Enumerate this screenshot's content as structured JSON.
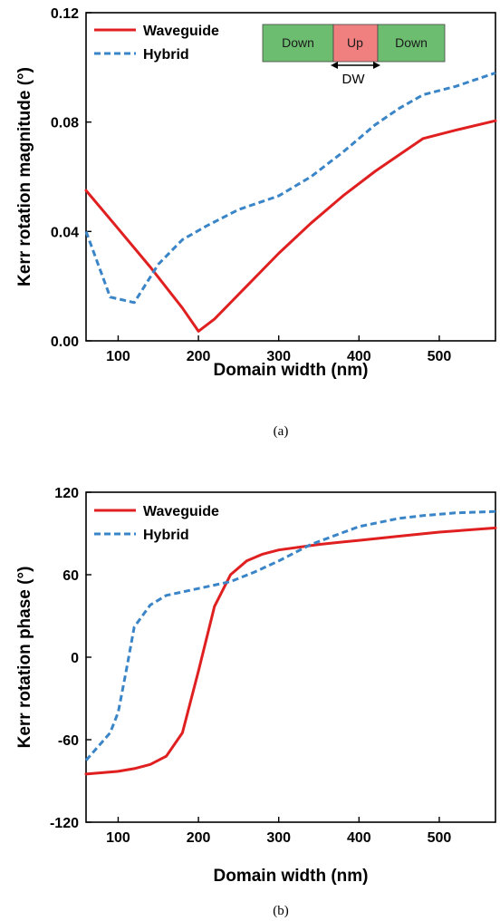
{
  "chart_data": [
    {
      "type": "line",
      "caption": "(a)",
      "xlabel": "Domain width (nm)",
      "ylabel": "Kerr rotation magnitude (°)",
      "xlim": [
        60,
        570
      ],
      "ylim": [
        0,
        0.12
      ],
      "xticks": [
        100,
        200,
        300,
        400,
        500
      ],
      "yticks": [
        0,
        0.04,
        0.08,
        0.12
      ],
      "ytick_labels": [
        "0.00",
        "0.04",
        "0.08",
        "0.12"
      ],
      "grid": false,
      "legend_position": "top-left",
      "series": [
        {
          "name": "Waveguide",
          "color": "#e02020",
          "style": "solid",
          "x": [
            60,
            100,
            140,
            180,
            200,
            220,
            260,
            300,
            340,
            380,
            420,
            450,
            480,
            520,
            570
          ],
          "y": [
            0.055,
            0.041,
            0.027,
            0.012,
            0.0035,
            0.008,
            0.02,
            0.032,
            0.043,
            0.053,
            0.062,
            0.068,
            0.074,
            0.077,
            0.0805
          ]
        },
        {
          "name": "Hybrid",
          "color": "#3a85c8",
          "style": "dashed",
          "x": [
            60,
            90,
            120,
            150,
            180,
            210,
            250,
            300,
            340,
            380,
            420,
            450,
            480,
            520,
            570
          ],
          "y": [
            0.04,
            0.016,
            0.014,
            0.028,
            0.037,
            0.042,
            0.048,
            0.053,
            0.06,
            0.069,
            0.079,
            0.085,
            0.09,
            0.093,
            0.098
          ]
        }
      ],
      "inset": {
        "segments": [
          "Down",
          "Up",
          "Down"
        ],
        "colors": [
          "#6dbd70",
          "#f08080",
          "#6dbd70"
        ],
        "arrow_label": "DW"
      }
    },
    {
      "type": "line",
      "caption": "(b)",
      "xlabel": "Domain width (nm)",
      "ylabel": "Kerr rotation phase (°)",
      "xlim": [
        60,
        570
      ],
      "ylim": [
        -120,
        120
      ],
      "xticks": [
        100,
        200,
        300,
        400,
        500
      ],
      "yticks": [
        -120,
        -60,
        0,
        60,
        120
      ],
      "ytick_labels": [
        "-120",
        "-60",
        "0",
        "60",
        "120"
      ],
      "grid": false,
      "legend_position": "top-left",
      "series": [
        {
          "name": "Waveguide",
          "color": "#e02020",
          "style": "solid",
          "x": [
            60,
            100,
            120,
            140,
            160,
            180,
            200,
            220,
            240,
            260,
            280,
            300,
            350,
            400,
            450,
            500,
            570
          ],
          "y": [
            -85,
            -83,
            -81,
            -78,
            -72,
            -55,
            -10,
            37,
            60,
            70,
            75,
            78,
            82,
            85,
            88,
            91,
            94
          ]
        },
        {
          "name": "Hybrid",
          "color": "#3a85c8",
          "style": "dashed",
          "x": [
            60,
            90,
            100,
            110,
            120,
            140,
            160,
            200,
            240,
            270,
            300,
            340,
            400,
            450,
            480,
            520,
            570
          ],
          "y": [
            -75,
            -55,
            -40,
            -10,
            22,
            38,
            45,
            50,
            55,
            62,
            70,
            82,
            95,
            101,
            103,
            105,
            106
          ]
        }
      ]
    }
  ]
}
